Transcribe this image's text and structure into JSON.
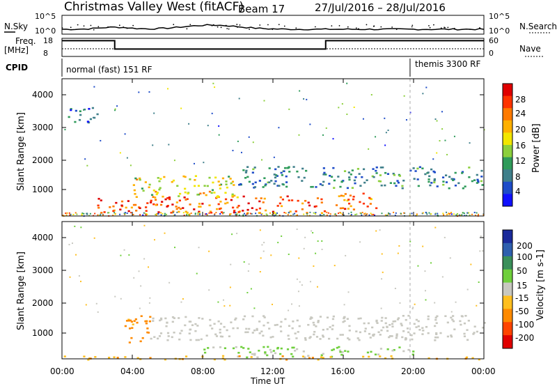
{
  "header": {
    "station": "Christmas Valley West (fitACF)",
    "beam": "Beam 17",
    "dates": "27/Jul/2016 – 28/Jul/2016"
  },
  "noise_panel": {
    "left_label": "N.Sky",
    "right_label": "N.Search",
    "left_ticks": [
      "10^5",
      "10^0"
    ],
    "right_ticks": [
      "10^5",
      "10^0"
    ]
  },
  "freq_panel": {
    "left_label": "Freq.",
    "left_unit": "[MHz]",
    "right_label": "Nave",
    "left_ticks": [
      "18",
      "8"
    ],
    "right_ticks": [
      "60",
      "0"
    ]
  },
  "cpid_panel": {
    "label": "CPID",
    "modes": [
      "normal (fast) 151 RF",
      "themis 3300 RF"
    ]
  },
  "power_panel": {
    "ylabel": "Slant Range [km]",
    "colorbar_label": "Power [dB]",
    "colorbar_ticks": [
      "28",
      "24",
      "20",
      "16",
      "12",
      "8",
      "4"
    ],
    "colorbar_colors": [
      "#e00000",
      "#ff3300",
      "#ff7a00",
      "#ffb000",
      "#f2e600",
      "#8ccf3c",
      "#2f9b5a",
      "#3f7f8a",
      "#1e4cc8",
      "#1010ff"
    ]
  },
  "velocity_panel": {
    "ylabel": "Slant Range [km]",
    "colorbar_label": "Velocity [m s-1]",
    "colorbar_ticks": [
      "200",
      "100",
      "50",
      "15",
      "-15",
      "-50",
      "-100",
      "-200"
    ],
    "colorbar_colors": [
      "#1a2a9a",
      "#2e5fae",
      "#3a8f5a",
      "#6fcf3c",
      "#c8c8c0",
      "#ffbf1f",
      "#ff8a00",
      "#ff4400",
      "#e00000"
    ]
  },
  "axes": {
    "xlabel": "Time UT",
    "xticks": [
      "00:00",
      "04:00",
      "08:00",
      "12:00",
      "16:00",
      "20:00",
      "00:00"
    ],
    "yticks": [
      "4000",
      "3000",
      "2000",
      "1000"
    ]
  },
  "chart_data": {
    "type": "heatmap",
    "xlim": [
      0,
      24
    ],
    "ylim": [
      180,
      4600
    ],
    "frequency_mhz": [
      {
        "start": 0,
        "end": 3,
        "value": 17
      },
      {
        "start": 3,
        "end": 15,
        "value": 12
      },
      {
        "start": 15,
        "end": 24,
        "value": 17
      }
    ],
    "cpid_switch_hour": 19.8,
    "power_regions": [
      {
        "t0": 2.0,
        "t1": 15.0,
        "r0": 300,
        "r1": 850,
        "db": 26
      },
      {
        "t0": 15.5,
        "t1": 18.0,
        "r0": 350,
        "r1": 950,
        "db": 24
      },
      {
        "t0": 4.0,
        "t1": 10.0,
        "r0": 800,
        "r1": 1500,
        "db": 18
      },
      {
        "t0": 10.0,
        "t1": 24.0,
        "r0": 1100,
        "r1": 1800,
        "db": 10
      },
      {
        "t0": 0.3,
        "t1": 2.2,
        "r0": 3200,
        "r1": 3700,
        "db": 8
      }
    ],
    "velocity_regions": [
      {
        "t0": 3.5,
        "t1": 5.0,
        "r0": 700,
        "r1": 1700,
        "v": -60
      },
      {
        "t0": 5.0,
        "t1": 24.0,
        "r0": 800,
        "r1": 1600,
        "v": 0
      },
      {
        "t0": 8.0,
        "t1": 20.0,
        "r0": 250,
        "r1": 600,
        "v": 20
      },
      {
        "t0": 0.0,
        "t1": 24.0,
        "r0": 180,
        "r1": 300,
        "v": -40
      }
    ]
  }
}
